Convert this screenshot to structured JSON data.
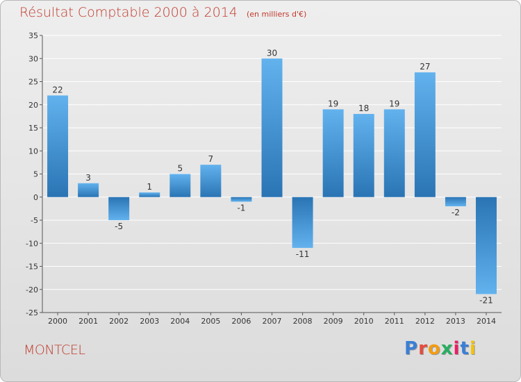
{
  "title": "Résultat Comptable 2000 à 2014",
  "subtitle": "(en milliers d'€)",
  "location": "MONTCEL",
  "logo": {
    "text": "Proxiti",
    "colors": [
      "#3a7fd5",
      "#e74c3c",
      "#f39c12",
      "#27ae60",
      "#e91e63",
      "#3a7fd5",
      "#f1c40f"
    ]
  },
  "colors": {
    "title": "#c0392b",
    "bar_dark": "#2a74b4",
    "bar_light": "#62b2ee",
    "grid": "#ffffff",
    "axis": "#555555"
  },
  "chart_data": {
    "type": "bar",
    "categories": [
      "2000",
      "2001",
      "2002",
      "2003",
      "2004",
      "2005",
      "2006",
      "2007",
      "2008",
      "2009",
      "2010",
      "2011",
      "2012",
      "2013",
      "2014"
    ],
    "values": [
      22,
      3,
      -5,
      1,
      5,
      7,
      -1,
      30,
      -11,
      19,
      18,
      19,
      27,
      -2,
      -21
    ],
    "data_labels": [
      "22",
      "3",
      "-5",
      "1",
      "5",
      "7",
      "-1",
      "30",
      "-11",
      "19",
      "18",
      "19",
      "27",
      "-2",
      "-21"
    ],
    "ylim": [
      -25,
      35
    ],
    "yticks": [
      35,
      30,
      25,
      20,
      15,
      10,
      5,
      0,
      -5,
      -10,
      -15,
      -20,
      -25
    ],
    "xlabel": "",
    "ylabel": "",
    "grid": true,
    "legend": "none"
  }
}
